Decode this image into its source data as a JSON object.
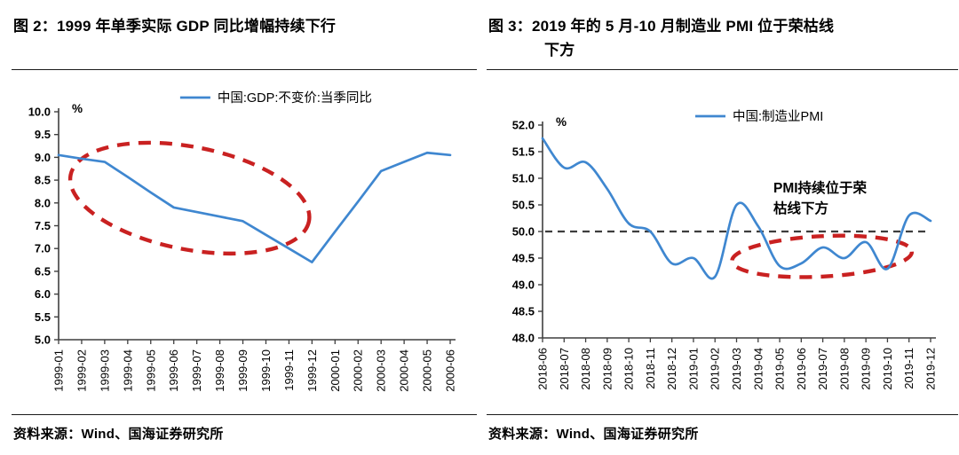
{
  "colors": {
    "line_blue": "#3f87d0",
    "annotation_red": "#c92121",
    "refline_gray": "#3d3d3d",
    "axis_gray": "#3f3f3f",
    "text_black": "#000000"
  },
  "figure2": {
    "title": "图 2：1999 年单季实际 GDP 同比增幅持续下行",
    "source": "资料来源：Wind、国海证券研究所"
  },
  "figure3": {
    "title_line1": "图 3：2019 年的 5 月-10 月制造业 PMI 位于荣枯线",
    "title_line2": "下方",
    "source": "资料来源：Wind、国海证券研究所"
  },
  "chart_data": [
    {
      "id": "gdp",
      "type": "line",
      "title": "1999 年单季实际 GDP 同比增幅持续下行",
      "legend": "中国:GDP:不变价:当季同比",
      "unit": "%",
      "ylim": [
        5.0,
        10.0
      ],
      "ytick_step": 0.5,
      "smooth": false,
      "grid": false,
      "legend_position": "top-center",
      "categories": [
        "1999-01",
        "1999-02",
        "1999-03",
        "1999-04",
        "1999-05",
        "1999-06",
        "1999-07",
        "1999-08",
        "1999-09",
        "1999-10",
        "1999-11",
        "1999-12",
        "2000-01",
        "2000-02",
        "2000-03",
        "2000-04",
        "2000-05",
        "2000-06"
      ],
      "values": [
        9.05,
        8.97,
        8.9,
        8.57,
        8.23,
        7.9,
        7.8,
        7.7,
        7.6,
        7.3,
        7.0,
        6.7,
        7.37,
        8.03,
        8.7,
        8.9,
        9.1,
        9.05
      ],
      "ellipse": {
        "cx": 0.335,
        "cy": 0.379,
        "rx": 0.31,
        "ry": 0.225,
        "angle": 11
      }
    },
    {
      "id": "pmi",
      "type": "line",
      "title": "2019 年的 5 月-10 月制造业 PMI 位于荣枯线下方",
      "legend": "中国:制造业PMI",
      "unit": "%",
      "ylim": [
        48.0,
        52.0
      ],
      "ytick_step": 0.5,
      "smooth": true,
      "grid": false,
      "legend_position": "top-center",
      "refline": 50.0,
      "categories": [
        "2018-06",
        "2018-07",
        "2018-08",
        "2018-09",
        "2018-10",
        "2018-11",
        "2018-12",
        "2019-01",
        "2019-02",
        "2019-03",
        "2019-04",
        "2019-05",
        "2019-06",
        "2019-07",
        "2019-08",
        "2019-09",
        "2019-10",
        "2019-11",
        "2019-12"
      ],
      "values": [
        51.75,
        51.2,
        51.3,
        50.8,
        50.15,
        50.0,
        49.4,
        49.5,
        49.15,
        50.5,
        50.1,
        49.35,
        49.4,
        49.7,
        49.5,
        49.8,
        49.3,
        50.3,
        50.2
      ],
      "ellipse": {
        "cx": 0.72,
        "cy": 0.617,
        "rx": 0.232,
        "ry": 0.095,
        "angle": -3
      },
      "annotation": {
        "lines": [
          "PMI持续位于荣",
          "枯线下方"
        ],
        "x": 0.595,
        "y": 0.317,
        "line_height": 23
      }
    }
  ]
}
